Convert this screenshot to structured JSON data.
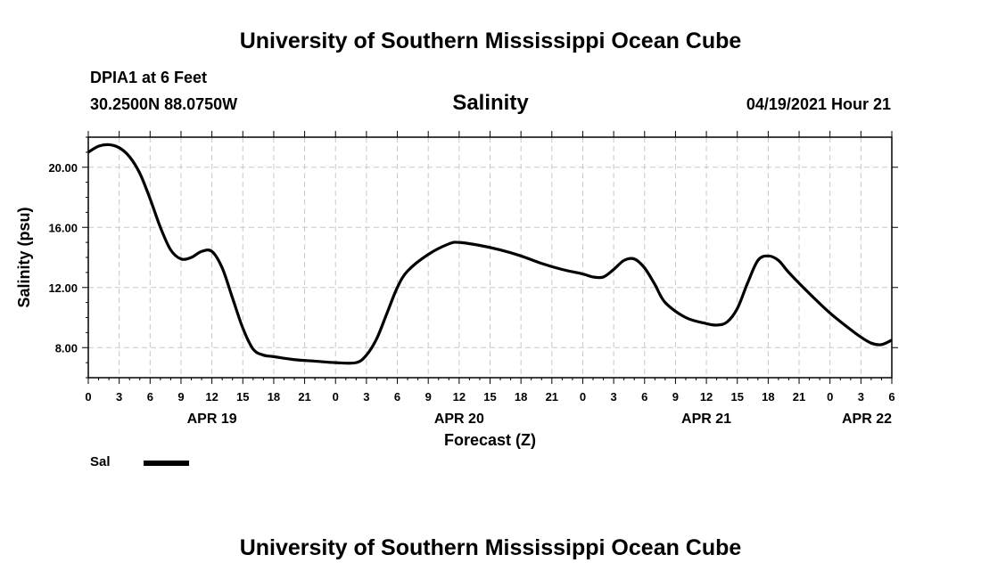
{
  "header": {
    "title": "University of Southern Mississippi Ocean Cube",
    "station": "DPIA1 at 6 Feet",
    "coords": "30.2500N  88.0750W",
    "variable": "Salinity",
    "datetime": "04/19/2021 Hour 21"
  },
  "footer": {
    "title": "University of Southern Mississippi Ocean Cube"
  },
  "legend": {
    "label": "Sal"
  },
  "colors": {
    "line": "#000000",
    "grid": "#c8c8c8",
    "background": "#ffffff"
  },
  "chart_data": {
    "type": "line",
    "title": "Salinity",
    "xlabel": "Forecast (Z)",
    "ylabel": "Salinity (psu)",
    "xlim": [
      0,
      78
    ],
    "ylim": [
      6,
      22
    ],
    "xunit": "hours since 2021-04-19 00Z",
    "x_ticks": [
      0,
      3,
      6,
      9,
      12,
      15,
      18,
      21,
      24,
      27,
      30,
      33,
      36,
      39,
      42,
      45,
      48,
      51,
      54,
      57,
      60,
      63,
      66,
      69,
      72,
      75,
      78
    ],
    "x_tick_labels": [
      "0",
      "3",
      "6",
      "9",
      "12",
      "15",
      "18",
      "21",
      "0",
      "3",
      "6",
      "9",
      "12",
      "15",
      "18",
      "21",
      "0",
      "3",
      "6",
      "9",
      "12",
      "15",
      "18",
      "21",
      "0",
      "3",
      "6"
    ],
    "date_labels": [
      {
        "x": 12,
        "label": "APR 19"
      },
      {
        "x": 36,
        "label": "APR 20"
      },
      {
        "x": 60,
        "label": "APR 21"
      },
      {
        "x": 78,
        "label": "APR 22"
      }
    ],
    "y_ticks": [
      8,
      12,
      16,
      20
    ],
    "y_tick_labels": [
      "8.00",
      "12.00",
      "16.00",
      "20.00"
    ],
    "grid": true,
    "series": [
      {
        "name": "Sal",
        "x": [
          0,
          1,
          2,
          3,
          4,
          5,
          6,
          7,
          8,
          9,
          10,
          11,
          12,
          13,
          14,
          15,
          16,
          17,
          18,
          20,
          22,
          24,
          26,
          27,
          28,
          29,
          30,
          31,
          33,
          35,
          36,
          38,
          40,
          42,
          44,
          46,
          48,
          49,
          50,
          51,
          52,
          53,
          54,
          55,
          56,
          58,
          60,
          61,
          62,
          63,
          64,
          65,
          66,
          67,
          68,
          70,
          72,
          74,
          75,
          76,
          77,
          78
        ],
        "values": [
          21.0,
          21.4,
          21.5,
          21.3,
          20.7,
          19.6,
          17.9,
          16.0,
          14.5,
          13.9,
          14.0,
          14.4,
          14.4,
          13.3,
          11.3,
          9.3,
          7.9,
          7.5,
          7.4,
          7.2,
          7.1,
          7.0,
          7.0,
          7.5,
          8.6,
          10.3,
          12.0,
          13.1,
          14.2,
          14.9,
          15.0,
          14.8,
          14.5,
          14.1,
          13.6,
          13.2,
          12.9,
          12.7,
          12.7,
          13.2,
          13.8,
          13.9,
          13.3,
          12.2,
          11.0,
          10.0,
          9.6,
          9.5,
          9.7,
          10.6,
          12.3,
          13.8,
          14.1,
          13.8,
          13.0,
          11.6,
          10.3,
          9.2,
          8.7,
          8.3,
          8.2,
          8.5
        ]
      }
    ]
  }
}
